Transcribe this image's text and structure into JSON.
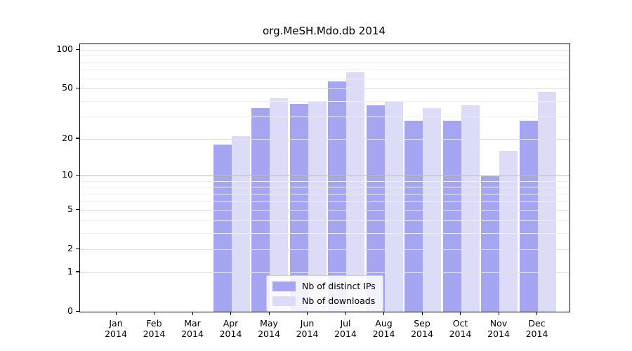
{
  "title": "org.MeSH.Mdo.db 2014",
  "colors": {
    "distinct_ips": "#a5a5f2",
    "downloads": "#dcdcf8",
    "axis": "#000000",
    "grid_major": "#e2e2e2",
    "grid_emphasis": "#bdbdbd",
    "grid_minor": "#efefef",
    "legend_border": "#cccccc"
  },
  "chart_data": {
    "type": "bar",
    "title": "org.MeSH.Mdo.db 2014",
    "categories": [
      "Jan 2014",
      "Feb 2014",
      "Mar 2014",
      "Apr 2014",
      "May 2014",
      "Jun 2014",
      "Jul 2014",
      "Aug 2014",
      "Sep 2014",
      "Oct 2014",
      "Nov 2014",
      "Dec 2014"
    ],
    "series": [
      {
        "name": "Nb of distinct IPs",
        "color": "#a5a5f2",
        "values": [
          0,
          0,
          0,
          18,
          35,
          38,
          57,
          37,
          28,
          28,
          10,
          28
        ]
      },
      {
        "name": "Nb of downloads",
        "color": "#dcdcf8",
        "values": [
          0,
          0,
          0,
          21,
          42,
          40,
          67,
          40,
          35,
          37,
          16,
          47
        ]
      }
    ],
    "xlabel": "",
    "ylabel": "",
    "y_axis": {
      "scale": "log(1+v)",
      "ticks": [
        0,
        1,
        2,
        5,
        10,
        20,
        50,
        100
      ],
      "emphasized_gridlines": [
        10
      ],
      "minor_gridlines": [
        3,
        4,
        6,
        7,
        8,
        9,
        30,
        40,
        60,
        70,
        80,
        90
      ],
      "range": [
        0,
        100
      ]
    },
    "grid": true,
    "legend": {
      "position": "bottom-center-inside",
      "entries": [
        "Nb of distinct IPs",
        "Nb of downloads"
      ]
    }
  }
}
